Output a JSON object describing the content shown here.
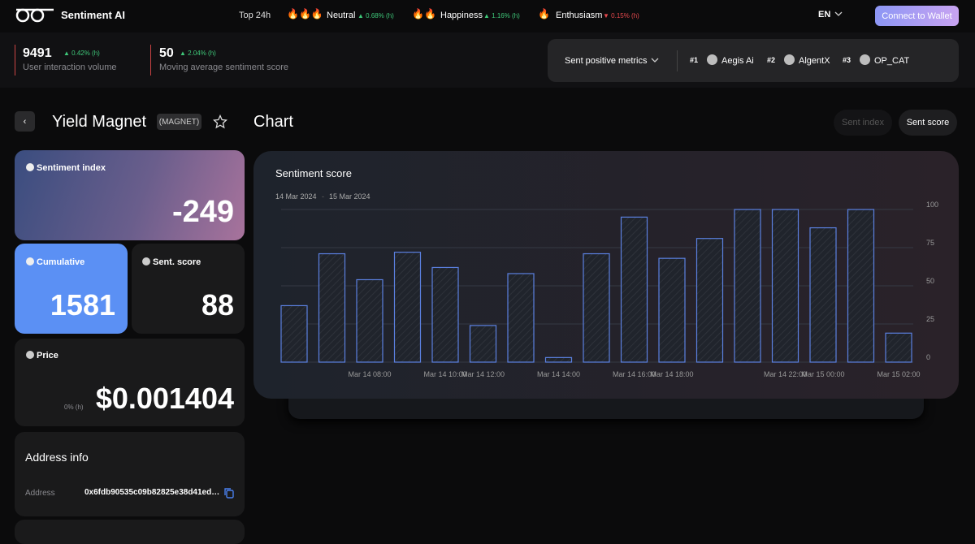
{
  "header": {
    "brand": "Sentiment AI",
    "top_label": "Top 24h",
    "moods": [
      {
        "name": "Neutral",
        "change": "▲ 0.68% (h)"
      },
      {
        "name": "Happiness",
        "change": "▲ 1.16% (h)"
      },
      {
        "name": "Enthusiasm",
        "change": "▼ 0.15% (h)"
      }
    ],
    "language": "EN",
    "button": "Connect to Wallet"
  },
  "stats": [
    {
      "value": "9491",
      "change": "▲ 0.42% (h)",
      "label": "User interaction volume"
    },
    {
      "value": "50",
      "change": "▲ 2.04% (h)",
      "label": "Moving average sentiment score"
    }
  ],
  "metrics": {
    "dropdown": "Sent positive metrics",
    "ranks": [
      {
        "rank": "#1",
        "name": "Aegis Ai"
      },
      {
        "rank": "#2",
        "name": "AlgentX"
      },
      {
        "rank": "#3",
        "name": "OP_CAT"
      }
    ]
  },
  "token": {
    "name": "Yield Magnet",
    "ticker": "(MAGNET)",
    "section": "Chart",
    "tabs": [
      "Sent index",
      "Sent score"
    ]
  },
  "cards": {
    "sentiment_index": {
      "label": "Sentiment index",
      "value": "-249"
    },
    "cumulative": {
      "label": "Cumulative",
      "value": "1581"
    },
    "sent_score": {
      "label": "Sent. score",
      "value": "88"
    },
    "price": {
      "label": "Price",
      "value": "$0.001404",
      "change": "0% (h)"
    }
  },
  "address": {
    "title": "Address info",
    "label": "Address",
    "value": "0x6fdb90535c09b82825e38d41ed…"
  },
  "chart": {
    "type": "bar",
    "title": "Sentiment score",
    "date_from": "14 Mar 2024",
    "date_to": "15 Mar 2024",
    "categories": [
      null,
      null,
      "Mar 14 08:00",
      null,
      "Mar 14 10:00",
      "Mar 14 12:00",
      null,
      "Mar 14 14:00",
      null,
      "Mar 14 16:00",
      "Mar 14 18:00",
      null,
      null,
      "Mar 14 22:00",
      "Mar 15 00:00",
      null,
      "Mar 15 02:00"
    ],
    "values": [
      37,
      71,
      54,
      72,
      62,
      24,
      58,
      3,
      71,
      95,
      68,
      81,
      100,
      100,
      88,
      100,
      19
    ],
    "ylim": [
      0,
      100
    ],
    "yticks": [
      0,
      25,
      50,
      75,
      100
    ],
    "grid": true,
    "color": "#5b80e0"
  }
}
